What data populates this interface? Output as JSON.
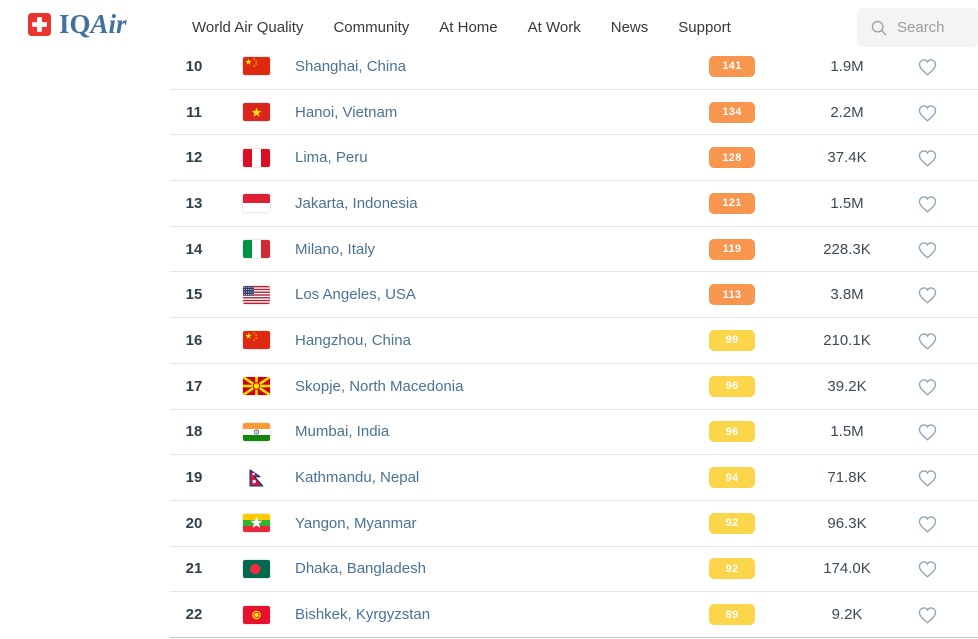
{
  "header": {
    "logo": {
      "text_iq": "IQ",
      "text_air": "Air",
      "cross_color": "#e8352e",
      "text_color": "#41719f"
    },
    "nav_items": [
      "World Air Quality",
      "Community",
      "At Home",
      "At Work",
      "News",
      "Support"
    ],
    "search": {
      "placeholder": "Search",
      "icon": "search-icon"
    }
  },
  "colors": {
    "aqi_usg": "#f8954e",
    "aqi_moderate": "#fbd54a",
    "city_link": "#4a7296",
    "heart_outline": "#8ca3ba"
  },
  "table": {
    "rows": [
      {
        "rank": "10",
        "flag": "china",
        "city": "Shanghai, China",
        "aqi": "141",
        "level": "usg",
        "followers": "1.9M"
      },
      {
        "rank": "11",
        "flag": "vietnam",
        "city": "Hanoi, Vietnam",
        "aqi": "134",
        "level": "usg",
        "followers": "2.2M"
      },
      {
        "rank": "12",
        "flag": "peru",
        "city": "Lima, Peru",
        "aqi": "128",
        "level": "usg",
        "followers": "37.4K"
      },
      {
        "rank": "13",
        "flag": "indonesia",
        "city": "Jakarta, Indonesia",
        "aqi": "121",
        "level": "usg",
        "followers": "1.5M"
      },
      {
        "rank": "14",
        "flag": "italy",
        "city": "Milano, Italy",
        "aqi": "119",
        "level": "usg",
        "followers": "228.3K"
      },
      {
        "rank": "15",
        "flag": "usa",
        "city": "Los Angeles, USA",
        "aqi": "113",
        "level": "usg",
        "followers": "3.8M"
      },
      {
        "rank": "16",
        "flag": "china",
        "city": "Hangzhou, China",
        "aqi": "99",
        "level": "moderate",
        "followers": "210.1K"
      },
      {
        "rank": "17",
        "flag": "north-macedonia",
        "city": "Skopje, North Macedonia",
        "aqi": "96",
        "level": "moderate",
        "followers": "39.2K"
      },
      {
        "rank": "18",
        "flag": "india",
        "city": "Mumbai, India",
        "aqi": "96",
        "level": "moderate",
        "followers": "1.5M"
      },
      {
        "rank": "19",
        "flag": "nepal",
        "city": "Kathmandu, Nepal",
        "aqi": "94",
        "level": "moderate",
        "followers": "71.8K"
      },
      {
        "rank": "20",
        "flag": "myanmar",
        "city": "Yangon, Myanmar",
        "aqi": "92",
        "level": "moderate",
        "followers": "96.3K"
      },
      {
        "rank": "21",
        "flag": "bangladesh",
        "city": "Dhaka, Bangladesh",
        "aqi": "92",
        "level": "moderate",
        "followers": "174.0K"
      },
      {
        "rank": "22",
        "flag": "kyrgyzstan",
        "city": "Bishkek, Kyrgyzstan",
        "aqi": "89",
        "level": "moderate",
        "followers": "9.2K"
      }
    ]
  }
}
